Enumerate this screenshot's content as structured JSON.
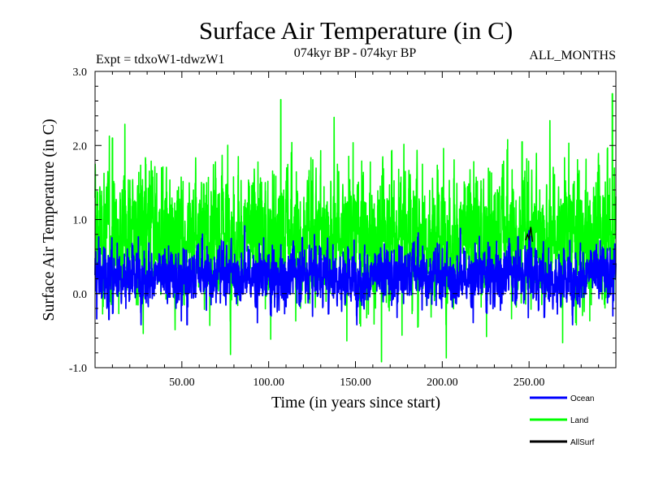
{
  "chart_data": {
    "type": "line",
    "title": "Surface Air Temperature (in C)",
    "subtitle_left": "Expt = tdxoW1-tdwzW1",
    "subtitle_center": "074kyr BP - 074kyr BP",
    "subtitle_right": "ALL_MONTHS",
    "xlabel": "Time (in years since start)",
    "ylabel": "Surface Air Temperature (in C)",
    "xlim": [
      0,
      300
    ],
    "ylim": [
      -1.0,
      3.0
    ],
    "x_ticks": [
      50,
      100,
      150,
      200,
      250
    ],
    "x_tick_labels": [
      "50.00",
      "100.00",
      "150.00",
      "200.00",
      "250.00"
    ],
    "y_ticks": [
      -1.0,
      0.0,
      1.0,
      2.0,
      3.0
    ],
    "y_tick_labels": [
      "-1.0",
      "0.0",
      "1.0",
      "2.0",
      "3.0"
    ],
    "reference_line": {
      "y": 0.0,
      "style": "dashed"
    },
    "series": [
      {
        "name": "Land",
        "color": "#00ff00",
        "mean": 0.8,
        "std": 0.42,
        "min": -0.92,
        "max": 2.7,
        "peaks": [
          [
            10,
            2.1
          ],
          [
            107,
            2.62
          ],
          [
            165,
            -0.92
          ],
          [
            246,
            2.05
          ],
          [
            298,
            2.7
          ]
        ]
      },
      {
        "name": "Ocean",
        "color": "#0000ff",
        "mean": 0.25,
        "std": 0.18,
        "min": -0.42,
        "max": 0.95,
        "peaks": [
          [
            8,
            -0.35
          ],
          [
            53,
            -0.42
          ],
          [
            250,
            0.85
          ],
          [
            299,
            0.6
          ]
        ]
      },
      {
        "name": "AllSurf",
        "color": "#000000",
        "mean": 0.4,
        "std": 0.22,
        "min": -0.3,
        "max": 0.95,
        "peaks": [
          [
            251,
            0.9
          ]
        ]
      }
    ],
    "legend": [
      {
        "label": "Ocean",
        "color": "#0000ff"
      },
      {
        "label": "Land",
        "color": "#00ff00"
      },
      {
        "label": "AllSurf",
        "color": "#000000"
      }
    ]
  }
}
